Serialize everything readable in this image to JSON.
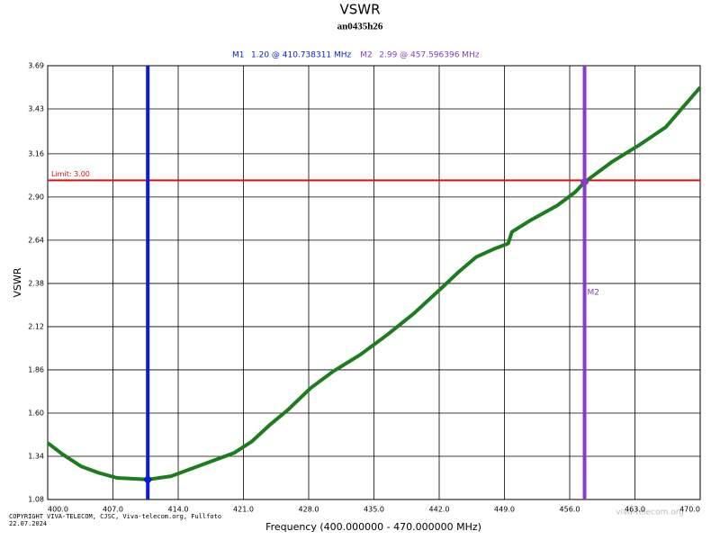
{
  "chart_data": {
    "type": "line",
    "title": "VSWR",
    "subtitle": "an0435h26",
    "x_label": "Frequency (400.000000 - 470.000000 MHz)",
    "y_label": "VSWR",
    "x": [
      400.0,
      401.64,
      403.57,
      405.5,
      407.43,
      410.74,
      413.23,
      415.16,
      417.57,
      419.99,
      421.92,
      423.85,
      425.78,
      428.19,
      430.61,
      433.5,
      436.4,
      439.3,
      442.2,
      444.1,
      446.0,
      448.0,
      449.4,
      449.8,
      451.8,
      454.7,
      456.6,
      457.6,
      460.5,
      463.4,
      466.3,
      470.0
    ],
    "values": [
      1.42,
      1.35,
      1.28,
      1.24,
      1.21,
      1.2,
      1.22,
      1.26,
      1.31,
      1.36,
      1.43,
      1.53,
      1.62,
      1.75,
      1.85,
      1.95,
      2.07,
      2.2,
      2.35,
      2.45,
      2.54,
      2.59,
      2.62,
      2.69,
      2.76,
      2.85,
      2.93,
      2.99,
      3.11,
      3.21,
      3.32,
      3.56
    ],
    "color": "#1b7d1b",
    "xlim": [
      400,
      470
    ],
    "xticks": [
      {
        "value": 400,
        "label": "400.0"
      },
      {
        "value": 407,
        "label": "407.0"
      },
      {
        "value": 414,
        "label": "414.0"
      },
      {
        "value": 421,
        "label": "421.0"
      },
      {
        "value": 428,
        "label": "428.0"
      },
      {
        "value": 435,
        "label": "435.0"
      },
      {
        "value": 442,
        "label": "442.0"
      },
      {
        "value": 449,
        "label": "449.0"
      },
      {
        "value": 456,
        "label": "456.0"
      },
      {
        "value": 463,
        "label": "463.0"
      },
      {
        "value": 470,
        "label": "470.0"
      }
    ],
    "ylim": [
      1.08,
      3.69
    ],
    "yticks": [
      1.08,
      1.34,
      {
        "value": 1.6,
        "label": "1.60"
      },
      1.86,
      2.12,
      2.38,
      2.64,
      {
        "value": 2.9,
        "label": "2.90"
      },
      3.16,
      3.43,
      3.69
    ],
    "grid": true,
    "limit": {
      "value": 3,
      "label": "Limit: 3.00",
      "color": "#e01010"
    },
    "markers": [
      {
        "name": "M1",
        "x": 410.738311,
        "value": 1.2,
        "label": "1.20 @ 410.738311 MHz",
        "color": "#0a1ed0"
      },
      {
        "name": "M2",
        "x": 457.596396,
        "value": 2.99,
        "label": "2.99 @ 457.596396 MHz",
        "color": "#8a3cc8"
      }
    ],
    "copyright": "COPYRIGHT VIVA-TELECOM, CJSC, Viva-telecom.org, Fullfoto",
    "date": "22.07.2024",
    "watermark": "viva-telecom.org"
  }
}
